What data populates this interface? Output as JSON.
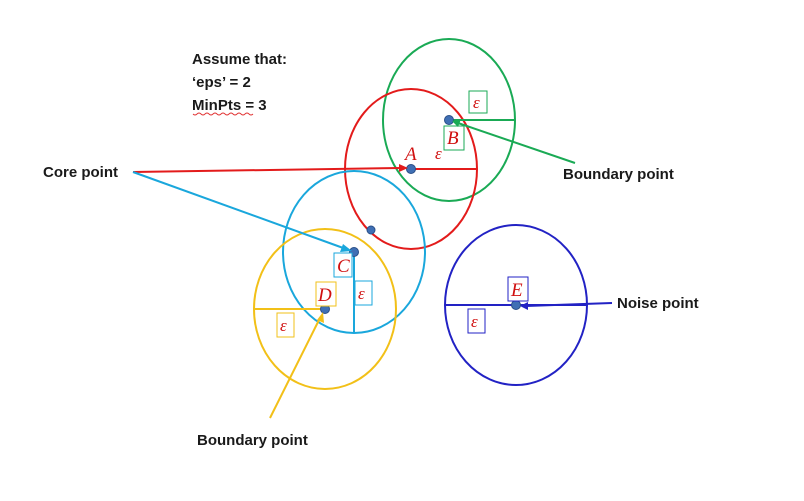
{
  "assumptions": {
    "line1": "Assume that:",
    "line2": "‘eps’ = 2",
    "line3": "MinPts = 3"
  },
  "labels": {
    "core": "Core point",
    "boundary_right": "Boundary point",
    "boundary_bottom": "Boundary point",
    "noise": "Noise point"
  },
  "points": {
    "A": "A",
    "B": "B",
    "C": "C",
    "D": "D",
    "E": "E"
  },
  "epsilon_symbol": "ε",
  "colors": {
    "green": "#1aaa55",
    "red": "#e31b1b",
    "cyan": "#1aa7dc",
    "yellow": "#f2c018",
    "blue": "#2222c4",
    "point": "#3f6fb4",
    "letter_red": "#d01010"
  }
}
